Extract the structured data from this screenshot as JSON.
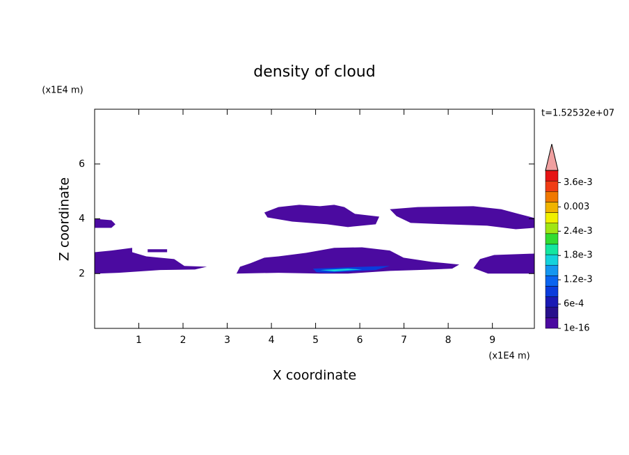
{
  "chart_data": {
    "type": "contour",
    "title": "density of cloud",
    "x_label": "X coordinate",
    "y_label": "Z coordinate",
    "x_unit": "(x1E4 m)",
    "y_unit": "(x1E4 m)",
    "time_label": "t=1.52532e+07",
    "xlim": [
      0,
      9.95
    ],
    "ylim": [
      0,
      8
    ],
    "xticks": [
      1,
      2,
      3,
      4,
      5,
      6,
      7,
      8,
      9
    ],
    "yticks": [
      2,
      4,
      6
    ],
    "colorbar": {
      "clim": [
        0,
        0.0039
      ],
      "colors": [
        "#4b0aa0",
        "#28108c",
        "#1a1ab4",
        "#0a3cdc",
        "#0a64f0",
        "#1496f0",
        "#14d2dc",
        "#14e6a0",
        "#32dc32",
        "#a0e614",
        "#f0f000",
        "#f0b400",
        "#f07800",
        "#f03c14",
        "#e61414"
      ],
      "extend_color": "#f0a0a0",
      "ticks": [
        {
          "value": 1e-16,
          "label": "1e-16"
        },
        {
          "value": 0.0006,
          "label": "6e-4"
        },
        {
          "value": 0.0012,
          "label": "1.2e-3"
        },
        {
          "value": 0.0018,
          "label": "1.8e-3"
        },
        {
          "value": 0.0024,
          "label": "2.4e-3"
        },
        {
          "value": 0.003,
          "label": "0.003"
        },
        {
          "value": 0.0036,
          "label": "3.6e-3"
        }
      ]
    },
    "regions": [
      {
        "level": 1e-16,
        "x": [
          0,
          0.38,
          0.47,
          0.38,
          0
        ],
        "z": [
          4.0,
          3.95,
          3.8,
          3.67,
          3.67
        ]
      },
      {
        "level": 1e-16,
        "x": [
          0,
          0.38,
          0.85,
          0.85,
          1.17,
          1.8,
          2.03,
          2.54,
          2.27,
          1.48,
          1.01,
          0.54,
          0.06,
          0
        ],
        "z": [
          2.78,
          2.84,
          2.94,
          2.78,
          2.63,
          2.53,
          2.28,
          2.25,
          2.15,
          2.13,
          2.08,
          2.03,
          2.0,
          2.0
        ]
      },
      {
        "level": 1e-16,
        "x": [
          1.2,
          1.64,
          1.64,
          1.2
        ],
        "z": [
          2.89,
          2.89,
          2.78,
          2.78
        ]
      },
      {
        "level": 1e-16,
        "x": [
          3.84,
          4.16,
          4.63,
          5.1,
          5.42,
          5.65,
          5.89,
          6.44,
          6.36,
          5.73,
          5.26,
          4.47,
          3.91
        ],
        "z": [
          4.23,
          4.43,
          4.51,
          4.46,
          4.51,
          4.43,
          4.18,
          4.08,
          3.8,
          3.7,
          3.8,
          3.9,
          4.05
        ]
      },
      {
        "level": 1e-16,
        "x": [
          6.68,
          7.31,
          8.57,
          9.2,
          9.59,
          9.95,
          9.95,
          9.53,
          8.88,
          7.94,
          7.15,
          6.83
        ],
        "z": [
          4.35,
          4.43,
          4.46,
          4.35,
          4.18,
          4.03,
          3.67,
          3.62,
          3.75,
          3.8,
          3.85,
          4.1
        ]
      },
      {
        "level": 1e-16,
        "x": [
          3.29,
          3.53,
          3.84,
          4.16,
          4.79,
          5.42,
          6.05,
          6.68,
          6.99,
          7.62,
          8.25,
          8.09,
          7.31,
          6.68,
          5.73,
          5.1,
          4.16,
          3.21
        ],
        "z": [
          2.25,
          2.38,
          2.58,
          2.63,
          2.76,
          2.94,
          2.96,
          2.84,
          2.58,
          2.43,
          2.33,
          2.18,
          2.13,
          2.1,
          2.0,
          2.0,
          2.03,
          2.0
        ]
      },
      {
        "level": 1e-16,
        "x": [
          8.72,
          9.04,
          9.95,
          9.95,
          8.9,
          8.57
        ],
        "z": [
          2.53,
          2.68,
          2.73,
          2.0,
          2.0,
          2.2
        ]
      },
      {
        "level": 0.0009,
        "x": [
          4.94,
          5.73,
          6.68,
          6.36,
          5.26,
          5.02
        ],
        "z": [
          2.18,
          2.23,
          2.28,
          2.13,
          2.03,
          2.05
        ]
      },
      {
        "level": 0.0018,
        "x": [
          5.1,
          5.73,
          6.05,
          5.42
        ],
        "z": [
          2.13,
          2.18,
          2.15,
          2.08
        ]
      }
    ]
  }
}
